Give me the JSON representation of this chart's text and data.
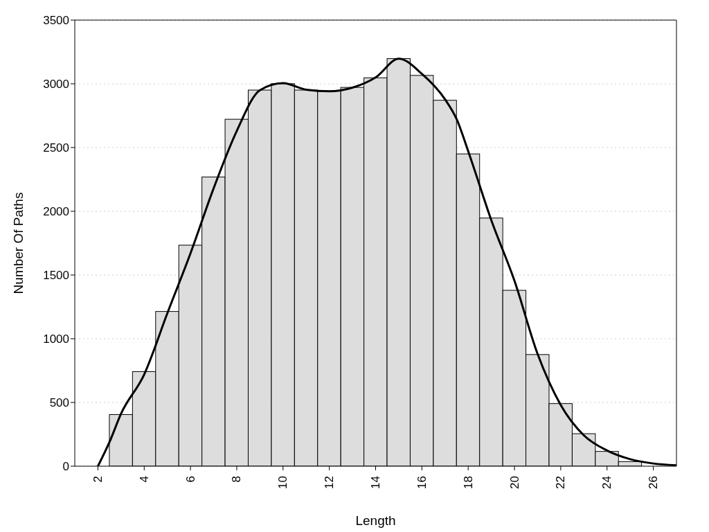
{
  "chart_data": {
    "type": "histogram",
    "xlabel": "Length",
    "ylabel": "Number Of Paths",
    "xlim": [
      1,
      27
    ],
    "xticks": [
      2,
      4,
      6,
      8,
      10,
      12,
      14,
      16,
      18,
      20,
      22,
      24,
      26
    ],
    "ylim": [
      0,
      3500
    ],
    "yticks": [
      0,
      500,
      1000,
      1500,
      2000,
      2500,
      3000,
      3500
    ],
    "grid": "y",
    "legend": false,
    "series": [
      {
        "color": "#dddddd",
        "bins": [
          2.5,
          3.5,
          4.5,
          5.5,
          6.5,
          7.5,
          8.5,
          9.5,
          10.5,
          11.5,
          12.5,
          13.5,
          14.5,
          15.5,
          16.5,
          17.5,
          18.5,
          19.5,
          20.5,
          21.5,
          22.5,
          23.5,
          24.5,
          25.5,
          26.5
        ],
        "values": [
          405,
          742,
          1214,
          1734,
          2269,
          2722,
          2951,
          3001,
          2951,
          2945,
          2972,
          3047,
          3198,
          3066,
          2871,
          2450,
          1947,
          1380,
          876,
          491,
          255,
          116,
          36,
          null
        ]
      },
      {
        "type": "line",
        "color": "#000000",
        "x": [
          2,
          2.5,
          3,
          4,
          5,
          6,
          7,
          8,
          9,
          10,
          11,
          12,
          13,
          14,
          15,
          16,
          17,
          17.5,
          18,
          19,
          20,
          21,
          22,
          23,
          24,
          25,
          26,
          27
        ],
        "values": [
          0,
          189,
          412,
          720,
          1200,
          1670,
          2180,
          2630,
          2950,
          3005,
          2954,
          2941,
          2970,
          3050,
          3197,
          3078,
          2878,
          2723,
          2472,
          1930,
          1455,
          880,
          480,
          242,
          123,
          55,
          21,
          7
        ]
      }
    ]
  }
}
